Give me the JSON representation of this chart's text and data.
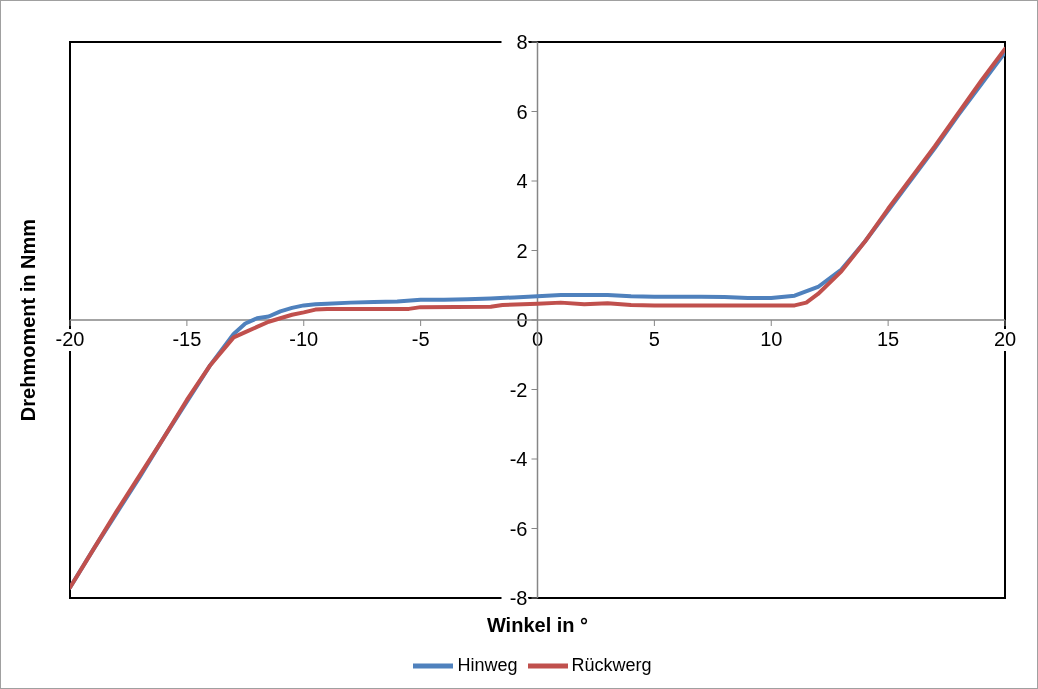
{
  "chart_data": {
    "type": "line",
    "xlabel": "Winkel in °",
    "ylabel": "Drehmoment in Nmm",
    "xlim": [
      -20,
      20
    ],
    "xticks": [
      -20,
      -15,
      -10,
      -5,
      0,
      5,
      10,
      15,
      20
    ],
    "ylim": [
      -8,
      8
    ],
    "yticks": [
      -8,
      -6,
      -4,
      -2,
      0,
      2,
      4,
      6,
      8
    ],
    "grid": false,
    "legend": "bottom",
    "line_style": "solid",
    "marker": "none",
    "series": [
      {
        "name": "Hinweg",
        "color": "#4f81bd",
        "x": [
          -20,
          -19,
          -18,
          -17,
          -16,
          -15,
          -14,
          -13,
          -12.5,
          -12,
          -11.5,
          -11,
          -10.5,
          -10,
          -9.5,
          -9,
          -8,
          -7,
          -6,
          -5,
          -4,
          -3,
          -2,
          -1,
          0,
          1,
          2,
          3,
          4,
          5,
          6,
          7,
          8,
          9,
          10,
          11,
          12,
          13,
          14,
          15,
          16,
          17,
          18,
          19,
          20
        ],
        "values": [
          -7.7,
          -6.6,
          -5.55,
          -4.5,
          -3.4,
          -2.35,
          -1.3,
          -0.4,
          -0.1,
          0.05,
          0.1,
          0.25,
          0.35,
          0.42,
          0.45,
          0.47,
          0.5,
          0.52,
          0.53,
          0.58,
          0.58,
          0.6,
          0.62,
          0.65,
          0.68,
          0.72,
          0.72,
          0.72,
          0.68,
          0.67,
          0.67,
          0.67,
          0.66,
          0.63,
          0.63,
          0.7,
          0.95,
          1.45,
          2.25,
          3.15,
          4.05,
          4.95,
          5.9,
          6.8,
          7.7
        ]
      },
      {
        "name": "Rückwerg",
        "color": "#c0504d",
        "x": [
          -20,
          -19,
          -18,
          -17,
          -16,
          -15,
          -14,
          -13,
          -12.5,
          -12,
          -11.5,
          -11,
          -10.5,
          -10,
          -9.5,
          -9,
          -5.5,
          -5,
          -2,
          -1.5,
          0,
          1,
          2,
          3,
          4,
          5,
          10,
          11,
          11.5,
          12,
          13,
          14,
          15,
          16,
          17,
          18,
          19,
          20
        ],
        "values": [
          -7.7,
          -6.6,
          -5.5,
          -4.45,
          -3.4,
          -2.3,
          -1.3,
          -0.5,
          -0.35,
          -0.2,
          -0.05,
          0.05,
          0.15,
          0.22,
          0.3,
          0.32,
          0.32,
          0.37,
          0.38,
          0.43,
          0.47,
          0.5,
          0.45,
          0.48,
          0.43,
          0.42,
          0.42,
          0.42,
          0.5,
          0.75,
          1.4,
          2.25,
          3.2,
          4.1,
          5.0,
          5.95,
          6.9,
          7.8
        ]
      }
    ]
  }
}
